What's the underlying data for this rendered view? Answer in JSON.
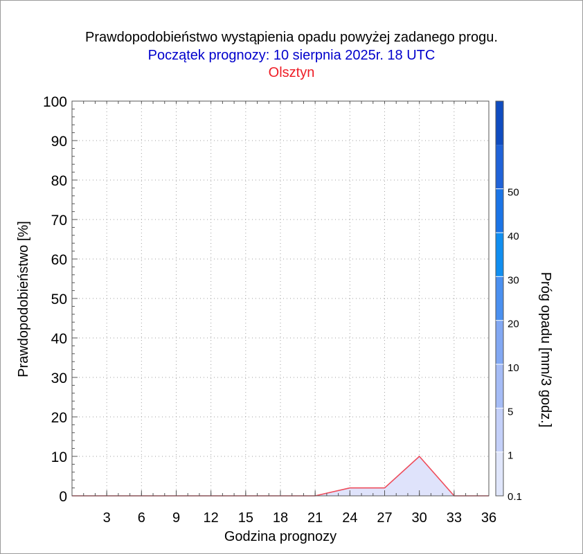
{
  "title": "Prawdopodobieństwo wystąpienia opadu powyżej zadanego progu.",
  "subtitle": "Początek prognozy: 10 sierpnia 2025r. 18 UTC",
  "station": "Olsztyn",
  "colors": {
    "title": "#000000",
    "subtitle": "#0000cc",
    "station": "#ee1c25",
    "line": "#ee4b5a",
    "fill": "#dfe3fb"
  },
  "chart_data": {
    "type": "area",
    "xlabel": "Godzina prognozy",
    "ylabel": "Prawdopodobieństwo [%]",
    "xlim": [
      0,
      36
    ],
    "ylim": [
      0,
      100
    ],
    "x_ticks": [
      3,
      6,
      9,
      12,
      15,
      18,
      21,
      24,
      27,
      30,
      33,
      36
    ],
    "y_ticks": [
      0,
      10,
      20,
      30,
      40,
      50,
      60,
      70,
      80,
      90,
      100
    ],
    "grid": true,
    "series": [
      {
        "threshold": "0.1",
        "x": [
          0,
          3,
          6,
          9,
          12,
          15,
          18,
          21,
          24,
          27,
          30,
          33,
          36
        ],
        "y": [
          0,
          0,
          0,
          0,
          0,
          0,
          0,
          0,
          2,
          2,
          10,
          0,
          0
        ]
      }
    ],
    "colorbar": {
      "label": "Próg opadu [mm/3 godz.]",
      "tick_labels": [
        "0.1",
        "1",
        "5",
        "10",
        "20",
        "30",
        "40",
        "50"
      ],
      "colors": [
        "#e0e6fb",
        "#c4d0f9",
        "#a5bcf6",
        "#82a8f3",
        "#4a90f0",
        "#108ef0",
        "#1a74e6",
        "#1f62d8",
        "#0f4cc0"
      ]
    }
  }
}
